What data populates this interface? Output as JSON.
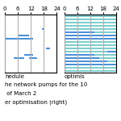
{
  "chart_data": [
    {
      "type": "gantt",
      "categories": [
        null,
        null,
        null,
        null,
        null,
        null,
        null,
        null,
        null,
        null,
        null,
        null,
        null,
        null,
        null,
        null,
        null,
        null
      ],
      "series": [
        {
          "color": "#4a90d9",
          "values": [
            [],
            [],
            [],
            [],
            [
              [
                4,
                9
              ],
              [
                11,
                15
              ]
            ],
            [
              [
                9,
                13
              ]
            ],
            [],
            [
              [
                19,
                21
              ]
            ],
            [],
            [],
            [
              [
                0,
                13
              ]
            ],
            [
              [
                6,
                11
              ]
            ],
            [],
            [
              [
                17,
                18
              ]
            ],
            [],
            [],
            [],
            []
          ]
        }
      ],
      "xlim": [
        0,
        24
      ],
      "xticks": [
        0,
        6,
        12,
        18,
        24
      ],
      "grid": true,
      "tick_labels": "x",
      "annotations": [
        "hedule"
      ]
    },
    {
      "type": "gantt",
      "categories": [
        null,
        null,
        null,
        null,
        null,
        null,
        null,
        null,
        null,
        null,
        null,
        null,
        null,
        null,
        null,
        null,
        null,
        null
      ],
      "series": [
        {
          "color": "#7ecece",
          "values": [
            [
              [
                0,
                24
              ]
            ],
            [
              [
                0,
                24
              ]
            ],
            [
              [
                0,
                24
              ]
            ],
            [
              [
                0,
                24
              ]
            ],
            [
              [
                0,
                24
              ]
            ],
            [
              [
                0,
                24
              ]
            ],
            [
              [
                0,
                24
              ]
            ],
            [
              [
                0,
                24
              ]
            ],
            [
              [
                0,
                24
              ]
            ],
            [
              [
                0,
                24
              ]
            ],
            [
              [
                0,
                24
              ]
            ],
            [
              [
                0,
                24
              ]
            ],
            [
              [
                0,
                24
              ]
            ],
            [
              [
                0,
                24
              ]
            ],
            [
              [
                0,
                24
              ]
            ],
            [
              [
                0,
                24
              ]
            ],
            [
              [
                0,
                24
              ]
            ],
            [
              [
                0,
                24
              ]
            ]
          ]
        },
        {
          "color": "#4a90d9",
          "values": [
            [],
            [],
            [
              [
                0,
                24
              ]
            ],
            [
              [
                0,
                20
              ]
            ],
            [
              [
                0,
                16
              ]
            ],
            [
              [
                0,
                14
              ]
            ],
            [
              [
                20,
                24
              ]
            ],
            [],
            [],
            [],
            [
              [
                0,
                24
              ]
            ],
            [
              [
                0,
                24
              ]
            ],
            [
              [
                0,
                14
              ]
            ],
            [],
            [],
            [],
            [],
            []
          ]
        }
      ],
      "xlim": [
        0,
        24
      ],
      "xticks": [
        0,
        6,
        12,
        18,
        24
      ],
      "grid": true,
      "tick_labels": "x",
      "annotations": [
        "optimis"
      ]
    }
  ],
  "annotations": [
    "he network pumps for the 10",
    " of March 2",
    "er optimisation (right)"
  ]
}
